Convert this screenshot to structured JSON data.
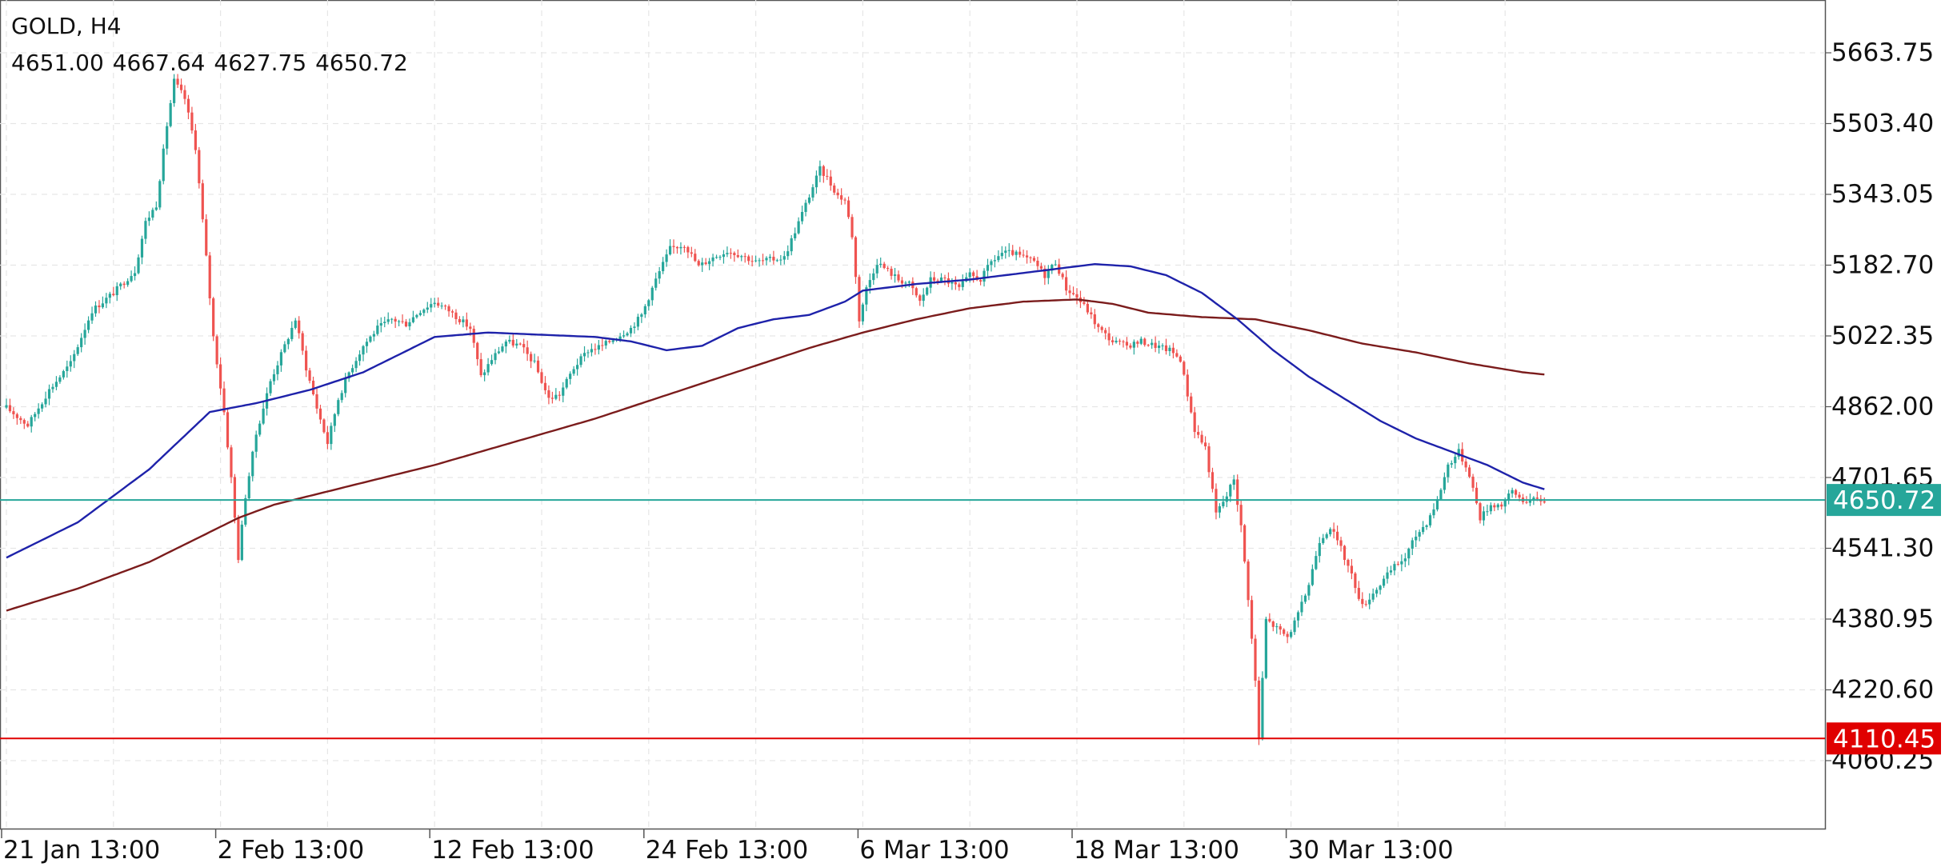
{
  "header": {
    "symbol_timeframe": "GOLD, H4",
    "ohlc": "4651.00 4667.64 4627.75 4650.72"
  },
  "colors": {
    "bull": "#26a69a",
    "bear": "#ef5350",
    "ma_fast": "#1e22aa",
    "ma_slow": "#7b1c1c",
    "current_line": "#26a69a",
    "support_line": "#e00000",
    "grid": "#e6e6e6",
    "axis_text": "#111111"
  },
  "chart_data": {
    "type": "candlestick",
    "symbol": "GOLD",
    "timeframe": "H4",
    "ylim": [
      3980,
      5750
    ],
    "y_ticks": [
      5663.75,
      5503.4,
      5343.05,
      5182.7,
      5022.35,
      4862.0,
      4701.65,
      4541.3,
      4380.95,
      4220.6,
      4060.25
    ],
    "x_ticks": [
      "21 Jan 13:00",
      "2 Feb 13:00",
      "12 Feb 13:00",
      "24 Feb 13:00",
      "6 Mar 13:00",
      "18 Mar 13:00",
      "30 Mar 13:00"
    ],
    "x_tick_index": [
      0,
      60,
      120,
      180,
      240,
      300,
      360
    ],
    "bar_count": 432,
    "current_price": {
      "label": "4650.72",
      "value": 4650.72
    },
    "support_level": {
      "label": "4110.45",
      "value": 4110.45
    },
    "ohlc_last": {
      "open": 4651.0,
      "high": 4667.64,
      "low": 4627.75,
      "close": 4650.72
    },
    "price_path": [
      [
        0,
        4860
      ],
      [
        6,
        4820
      ],
      [
        12,
        4900
      ],
      [
        18,
        4960
      ],
      [
        24,
        5080
      ],
      [
        30,
        5120
      ],
      [
        36,
        5170
      ],
      [
        39,
        5280
      ],
      [
        42,
        5320
      ],
      [
        45,
        5500
      ],
      [
        47,
        5600
      ],
      [
        50,
        5560
      ],
      [
        53,
        5450
      ],
      [
        56,
        5200
      ],
      [
        58,
        5020
      ],
      [
        61,
        4850
      ],
      [
        63,
        4700
      ],
      [
        65,
        4520
      ],
      [
        67,
        4660
      ],
      [
        70,
        4800
      ],
      [
        74,
        4920
      ],
      [
        78,
        5000
      ],
      [
        81,
        5060
      ],
      [
        84,
        4950
      ],
      [
        87,
        4860
      ],
      [
        90,
        4780
      ],
      [
        93,
        4880
      ],
      [
        96,
        4940
      ],
      [
        100,
        5000
      ],
      [
        104,
        5040
      ],
      [
        108,
        5060
      ],
      [
        112,
        5050
      ],
      [
        116,
        5080
      ],
      [
        120,
        5100
      ],
      [
        124,
        5080
      ],
      [
        127,
        5060
      ],
      [
        130,
        5040
      ],
      [
        133,
        4930
      ],
      [
        136,
        4970
      ],
      [
        140,
        5010
      ],
      [
        144,
        5000
      ],
      [
        148,
        4960
      ],
      [
        152,
        4880
      ],
      [
        155,
        4890
      ],
      [
        159,
        4950
      ],
      [
        163,
        4990
      ],
      [
        167,
        5000
      ],
      [
        171,
        5020
      ],
      [
        175,
        5040
      ],
      [
        178,
        5070
      ],
      [
        182,
        5150
      ],
      [
        186,
        5220
      ],
      [
        190,
        5230
      ],
      [
        194,
        5180
      ],
      [
        198,
        5200
      ],
      [
        202,
        5215
      ],
      [
        206,
        5205
      ],
      [
        210,
        5190
      ],
      [
        214,
        5195
      ],
      [
        218,
        5200
      ],
      [
        222,
        5280
      ],
      [
        225,
        5340
      ],
      [
        228,
        5400
      ],
      [
        230,
        5380
      ],
      [
        233,
        5340
      ],
      [
        235,
        5330
      ],
      [
        237,
        5250
      ],
      [
        239,
        5060
      ],
      [
        241,
        5130
      ],
      [
        244,
        5190
      ],
      [
        247,
        5170
      ],
      [
        250,
        5150
      ],
      [
        253,
        5140
      ],
      [
        256,
        5100
      ],
      [
        259,
        5150
      ],
      [
        263,
        5150
      ],
      [
        267,
        5130
      ],
      [
        270,
        5160
      ],
      [
        273,
        5150
      ],
      [
        276,
        5190
      ],
      [
        279,
        5210
      ],
      [
        282,
        5210
      ],
      [
        285,
        5200
      ],
      [
        288,
        5190
      ],
      [
        291,
        5160
      ],
      [
        294,
        5190
      ],
      [
        297,
        5130
      ],
      [
        300,
        5110
      ],
      [
        303,
        5080
      ],
      [
        306,
        5040
      ],
      [
        310,
        5010
      ],
      [
        314,
        5000
      ],
      [
        318,
        5010
      ],
      [
        322,
        5000
      ],
      [
        326,
        4990
      ],
      [
        329,
        4970
      ],
      [
        331,
        4890
      ],
      [
        333,
        4810
      ],
      [
        336,
        4770
      ],
      [
        339,
        4620
      ],
      [
        342,
        4660
      ],
      [
        344,
        4700
      ],
      [
        346,
        4590
      ],
      [
        348,
        4430
      ],
      [
        350,
        4240
      ],
      [
        351,
        4110
      ],
      [
        353,
        4380
      ],
      [
        356,
        4360
      ],
      [
        359,
        4340
      ],
      [
        362,
        4390
      ],
      [
        365,
        4460
      ],
      [
        368,
        4560
      ],
      [
        371,
        4590
      ],
      [
        374,
        4540
      ],
      [
        377,
        4480
      ],
      [
        380,
        4410
      ],
      [
        383,
        4440
      ],
      [
        386,
        4470
      ],
      [
        389,
        4500
      ],
      [
        392,
        4520
      ],
      [
        395,
        4570
      ],
      [
        398,
        4600
      ],
      [
        401,
        4650
      ],
      [
        404,
        4730
      ],
      [
        407,
        4760
      ],
      [
        410,
        4710
      ],
      [
        413,
        4610
      ],
      [
        416,
        4640
      ],
      [
        419,
        4640
      ],
      [
        422,
        4670
      ],
      [
        425,
        4650
      ],
      [
        428,
        4650
      ],
      [
        431,
        4650
      ]
    ],
    "ma_fast_path": [
      [
        0,
        4520
      ],
      [
        20,
        4600
      ],
      [
        40,
        4720
      ],
      [
        57,
        4850
      ],
      [
        70,
        4870
      ],
      [
        85,
        4900
      ],
      [
        100,
        4940
      ],
      [
        120,
        5020
      ],
      [
        135,
        5030
      ],
      [
        150,
        5025
      ],
      [
        165,
        5020
      ],
      [
        175,
        5010
      ],
      [
        185,
        4990
      ],
      [
        195,
        5000
      ],
      [
        205,
        5040
      ],
      [
        215,
        5060
      ],
      [
        225,
        5070
      ],
      [
        235,
        5100
      ],
      [
        240,
        5125
      ],
      [
        255,
        5140
      ],
      [
        270,
        5150
      ],
      [
        285,
        5165
      ],
      [
        295,
        5175
      ],
      [
        305,
        5185
      ],
      [
        315,
        5180
      ],
      [
        325,
        5160
      ],
      [
        335,
        5120
      ],
      [
        345,
        5060
      ],
      [
        355,
        4990
      ],
      [
        365,
        4930
      ],
      [
        375,
        4880
      ],
      [
        385,
        4830
      ],
      [
        395,
        4790
      ],
      [
        405,
        4760
      ],
      [
        415,
        4730
      ],
      [
        425,
        4690
      ],
      [
        431,
        4675
      ]
    ],
    "ma_slow_path": [
      [
        0,
        4400
      ],
      [
        20,
        4450
      ],
      [
        40,
        4510
      ],
      [
        55,
        4570
      ],
      [
        65,
        4610
      ],
      [
        75,
        4640
      ],
      [
        90,
        4670
      ],
      [
        105,
        4700
      ],
      [
        120,
        4730
      ],
      [
        135,
        4765
      ],
      [
        150,
        4800
      ],
      [
        165,
        4835
      ],
      [
        180,
        4875
      ],
      [
        195,
        4915
      ],
      [
        210,
        4955
      ],
      [
        225,
        4995
      ],
      [
        240,
        5030
      ],
      [
        255,
        5060
      ],
      [
        270,
        5085
      ],
      [
        285,
        5100
      ],
      [
        300,
        5105
      ],
      [
        310,
        5095
      ],
      [
        320,
        5075
      ],
      [
        335,
        5065
      ],
      [
        350,
        5060
      ],
      [
        365,
        5035
      ],
      [
        380,
        5005
      ],
      [
        395,
        4985
      ],
      [
        410,
        4960
      ],
      [
        425,
        4940
      ],
      [
        431,
        4935
      ]
    ]
  }
}
